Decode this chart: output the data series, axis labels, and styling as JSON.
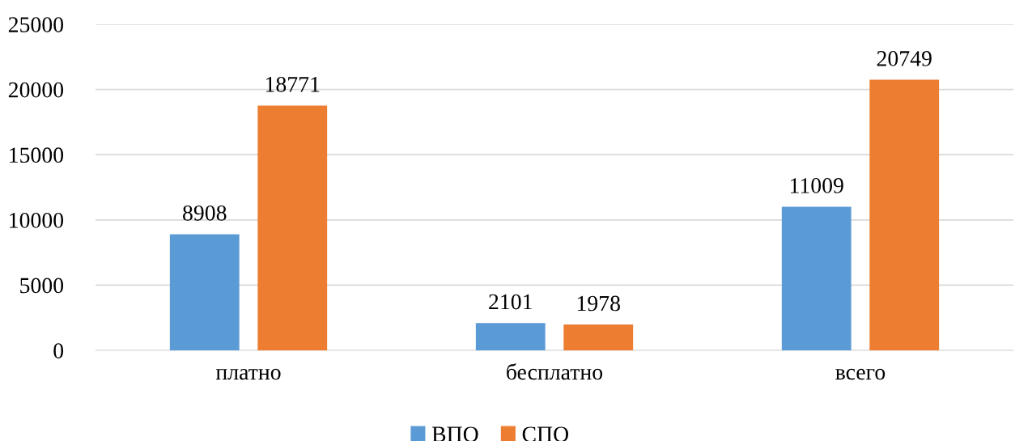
{
  "chart_data": {
    "type": "bar",
    "categories": [
      "платно",
      "бесплатно",
      "всего"
    ],
    "series": [
      {
        "name": "ВПО",
        "color": "#5b9bd5",
        "values": [
          8908,
          2101,
          11009
        ]
      },
      {
        "name": "СПО",
        "color": "#ed7d31",
        "values": [
          18771,
          1978,
          20749
        ]
      }
    ],
    "ylim": [
      0,
      25000
    ],
    "yticks": [
      0,
      5000,
      10000,
      15000,
      20000,
      25000
    ],
    "grid": "y",
    "legend": "bottom",
    "data_labels": true
  }
}
